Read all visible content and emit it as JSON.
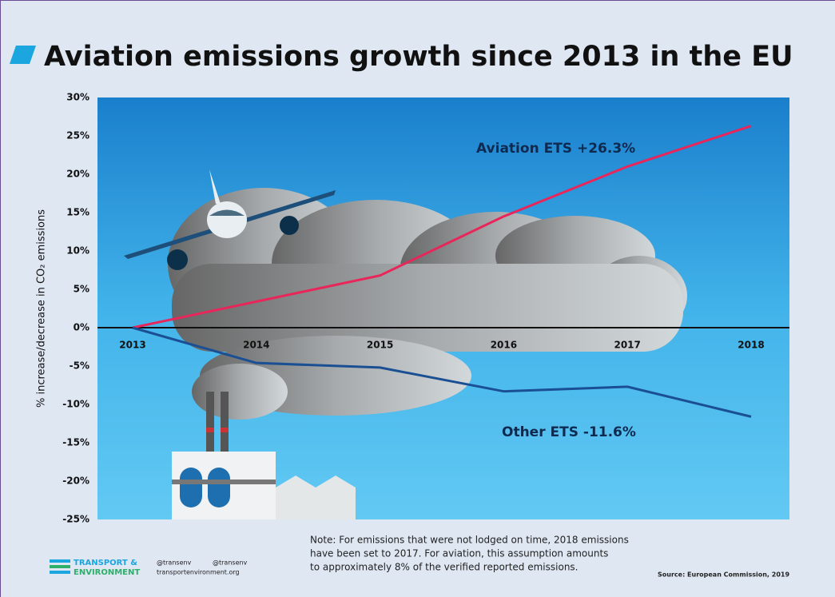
{
  "chart_data": {
    "type": "line",
    "title": "Aviation emissions growth since 2013 in the EU",
    "y_label": "% increase/decrease in CO₂ emissions",
    "categories": [
      "2013",
      "2014",
      "2015",
      "2016",
      "2017",
      "2018"
    ],
    "series": [
      {
        "name": "Aviation ETS",
        "color": "#e8265a",
        "values": [
          0,
          3.4,
          6.8,
          14.5,
          21.0,
          26.3
        ]
      },
      {
        "name": "Other ETS",
        "color": "#1b4f93",
        "values": [
          0,
          -4.6,
          -5.2,
          -8.3,
          -7.7,
          -11.6
        ]
      }
    ],
    "annotations": [
      "Aviation ETS +26.3%",
      "Other ETS -11.6%"
    ],
    "ylim": [
      -25,
      30
    ],
    "yticks": [
      {
        "value": 30,
        "label": "30%"
      },
      {
        "value": 25,
        "label": "25%"
      },
      {
        "value": 20,
        "label": "20%"
      },
      {
        "value": 15,
        "label": "15%"
      },
      {
        "value": 10,
        "label": "10%"
      },
      {
        "value": 5,
        "label": "5%"
      },
      {
        "value": 0,
        "label": "0%"
      },
      {
        "value": -5,
        "label": "-5%"
      },
      {
        "value": -10,
        "label": "-10%"
      },
      {
        "value": -15,
        "label": "-15%"
      },
      {
        "value": -20,
        "label": "-20%"
      },
      {
        "value": -25,
        "label": "-25%"
      }
    ],
    "grid": false,
    "note": [
      "Note:  For emissions that were not lodged on time, 2018 emissions",
      " have been set to 2017.  For aviation, this assumption amounts",
      "to approximately 8% of the verified reported emissions."
    ],
    "source": "Source: European Commission, 2019",
    "logo": [
      "TRANSPORT &",
      "ENVIRONMENT"
    ],
    "social": [
      "@transenv",
      "@transenv",
      "transportenvironment.org"
    ]
  }
}
